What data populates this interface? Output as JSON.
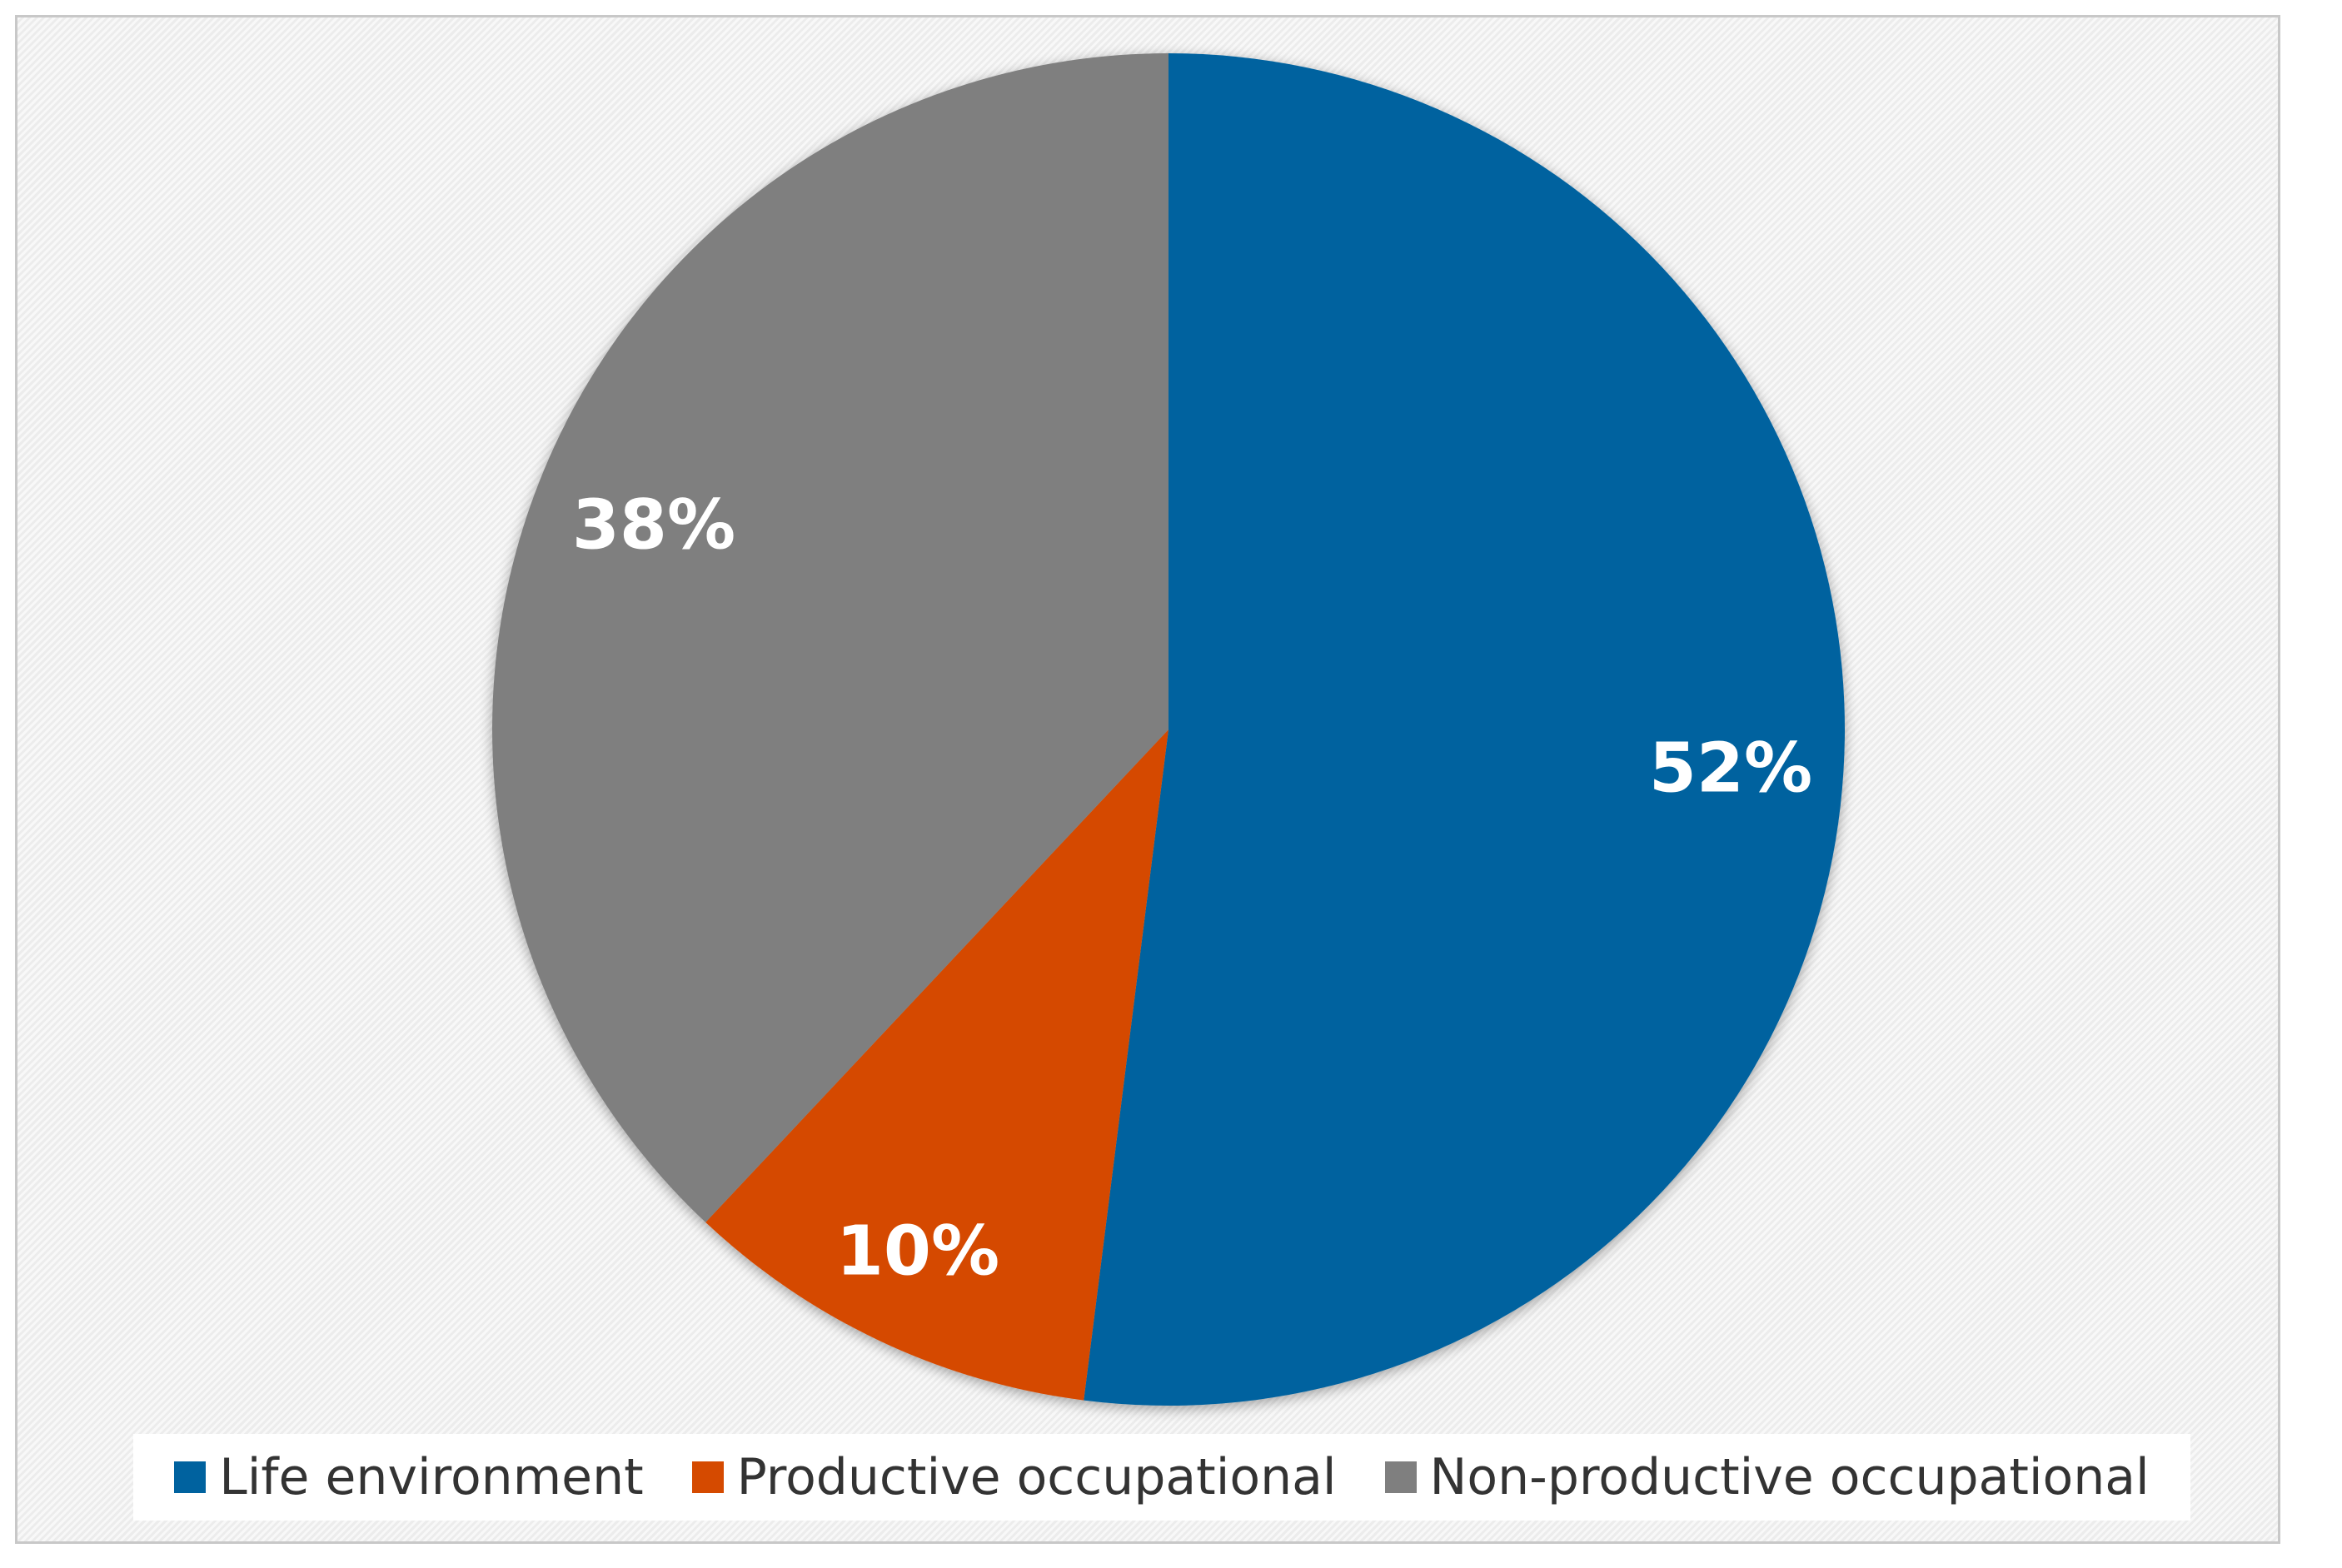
{
  "chart_data": {
    "type": "pie",
    "title": "",
    "categories": [
      "Life environment",
      "Productive occupational",
      "Non-productive occupational"
    ],
    "values": [
      52,
      10,
      38
    ],
    "labels": [
      "52%",
      "10%",
      "38%"
    ],
    "colors": [
      "#00629f",
      "#d54a00",
      "#7f7f7f"
    ],
    "start_angle_deg": 0,
    "direction": "clockwise",
    "legend_position": "bottom"
  }
}
